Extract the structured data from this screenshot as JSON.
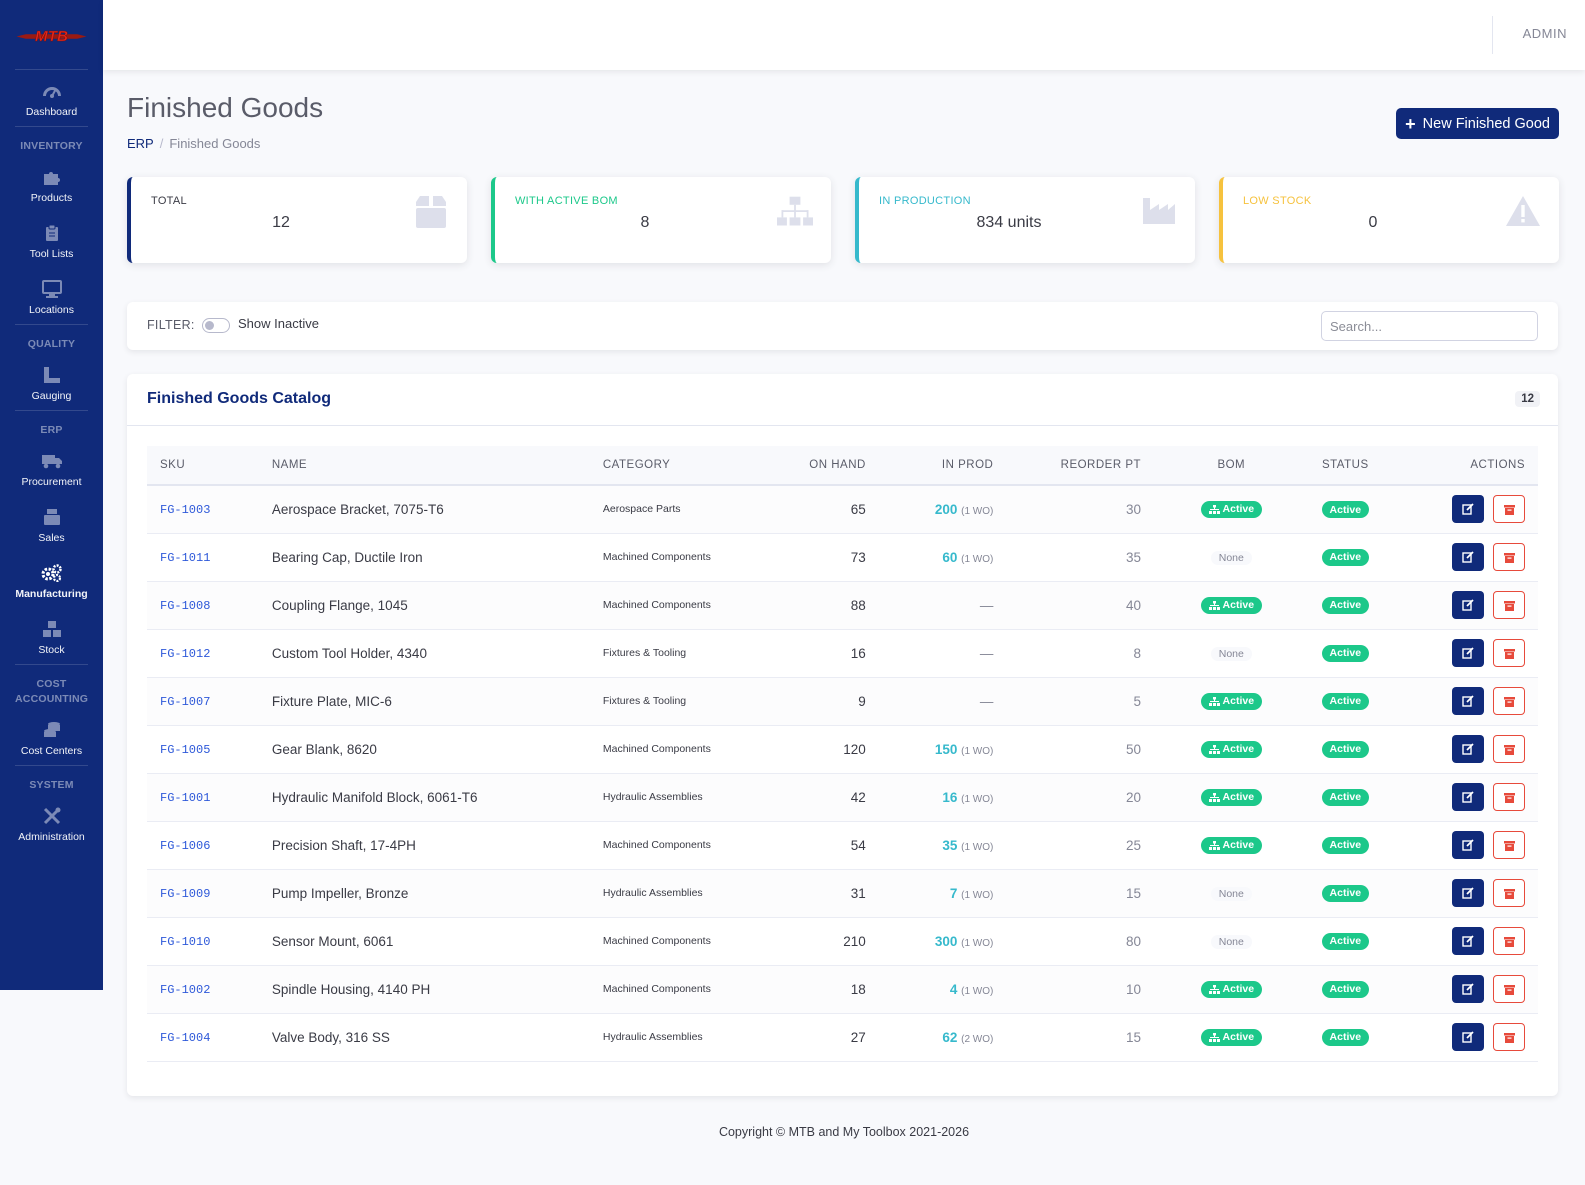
{
  "app": {
    "logo_text": "MTB",
    "user": "ADMIN"
  },
  "sidebar": {
    "dashboard": "Dashboard",
    "inventory_heading": "INVENTORY",
    "products": "Products",
    "tool_lists": "Tool Lists",
    "locations": "Locations",
    "quality_heading": "QUALITY",
    "gauging": "Gauging",
    "erp_heading": "ERP",
    "procurement": "Procurement",
    "sales": "Sales",
    "manufacturing": "Manufacturing",
    "stock": "Stock",
    "cost_heading_1": "COST",
    "cost_heading_2": "ACCOUNTING",
    "cost_centers": "Cost Centers",
    "system_heading": "SYSTEM",
    "administration": "Administration"
  },
  "page": {
    "title": "Finished Goods",
    "breadcrumb_root": "ERP",
    "breadcrumb_sep": "/",
    "breadcrumb_current": "Finished Goods",
    "new_button": "New Finished Good"
  },
  "stats": {
    "total": {
      "label": "TOTAL",
      "value": "12",
      "color": "#102a7a"
    },
    "bom": {
      "label": "WITH ACTIVE BOM",
      "value": "8",
      "color": "#1cc88a"
    },
    "production": {
      "label": "IN PRODUCTION",
      "value": "834 units",
      "color": "#36b9cc"
    },
    "low": {
      "label": "LOW STOCK",
      "value": "0",
      "color": "#f6c23e"
    }
  },
  "filter": {
    "label": "FILTER:",
    "toggle_label": "Show Inactive",
    "search_placeholder": "Search..."
  },
  "catalog": {
    "title": "Finished Goods Catalog",
    "count": "12",
    "columns": {
      "sku": "SKU",
      "name": "NAME",
      "category": "CATEGORY",
      "on_hand": "ON HAND",
      "in_prod": "IN PROD",
      "reorder": "REORDER PT",
      "bom": "BOM",
      "status": "STATUS",
      "actions": "ACTIONS"
    },
    "rows": [
      {
        "sku": "FG-1003",
        "name": "Aerospace Bracket, 7075-T6",
        "category": "Aerospace Parts",
        "on_hand": "65",
        "in_prod": "200",
        "wo": "(1 WO)",
        "reorder": "30",
        "bom": "Active",
        "status": "Active"
      },
      {
        "sku": "FG-1011",
        "name": "Bearing Cap, Ductile Iron",
        "category": "Machined Components",
        "on_hand": "73",
        "in_prod": "60",
        "wo": "(1 WO)",
        "reorder": "35",
        "bom": "None",
        "status": "Active"
      },
      {
        "sku": "FG-1008",
        "name": "Coupling Flange, 1045",
        "category": "Machined Components",
        "on_hand": "88",
        "in_prod": "—",
        "wo": "",
        "reorder": "40",
        "bom": "Active",
        "status": "Active"
      },
      {
        "sku": "FG-1012",
        "name": "Custom Tool Holder, 4340",
        "category": "Fixtures & Tooling",
        "on_hand": "16",
        "in_prod": "—",
        "wo": "",
        "reorder": "8",
        "bom": "None",
        "status": "Active"
      },
      {
        "sku": "FG-1007",
        "name": "Fixture Plate, MIC-6",
        "category": "Fixtures & Tooling",
        "on_hand": "9",
        "in_prod": "—",
        "wo": "",
        "reorder": "5",
        "bom": "Active",
        "status": "Active"
      },
      {
        "sku": "FG-1005",
        "name": "Gear Blank, 8620",
        "category": "Machined Components",
        "on_hand": "120",
        "in_prod": "150",
        "wo": "(1 WO)",
        "reorder": "50",
        "bom": "Active",
        "status": "Active"
      },
      {
        "sku": "FG-1001",
        "name": "Hydraulic Manifold Block, 6061-T6",
        "category": "Hydraulic Assemblies",
        "on_hand": "42",
        "in_prod": "16",
        "wo": "(1 WO)",
        "reorder": "20",
        "bom": "Active",
        "status": "Active"
      },
      {
        "sku": "FG-1006",
        "name": "Precision Shaft, 17-4PH",
        "category": "Machined Components",
        "on_hand": "54",
        "in_prod": "35",
        "wo": "(1 WO)",
        "reorder": "25",
        "bom": "Active",
        "status": "Active"
      },
      {
        "sku": "FG-1009",
        "name": "Pump Impeller, Bronze",
        "category": "Hydraulic Assemblies",
        "on_hand": "31",
        "in_prod": "7",
        "wo": "(1 WO)",
        "reorder": "15",
        "bom": "None",
        "status": "Active"
      },
      {
        "sku": "FG-1010",
        "name": "Sensor Mount, 6061",
        "category": "Machined Components",
        "on_hand": "210",
        "in_prod": "300",
        "wo": "(1 WO)",
        "reorder": "80",
        "bom": "None",
        "status": "Active"
      },
      {
        "sku": "FG-1002",
        "name": "Spindle Housing, 4140 PH",
        "category": "Machined Components",
        "on_hand": "18",
        "in_prod": "4",
        "wo": "(1 WO)",
        "reorder": "10",
        "bom": "Active",
        "status": "Active"
      },
      {
        "sku": "FG-1004",
        "name": "Valve Body, 316 SS",
        "category": "Hydraulic Assemblies",
        "on_hand": "27",
        "in_prod": "62",
        "wo": "(2 WO)",
        "reorder": "15",
        "bom": "Active",
        "status": "Active"
      }
    ]
  },
  "footer": {
    "text": "Copyright © MTB and My Toolbox 2021-2026"
  }
}
